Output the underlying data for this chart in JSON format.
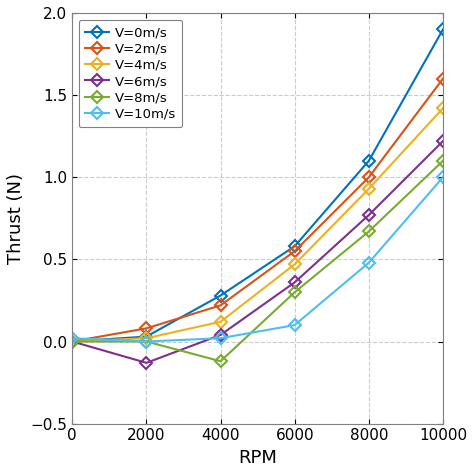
{
  "series": [
    {
      "label": "V=0m/s",
      "color": "#0072BD",
      "rpm": [
        0,
        2000,
        4000,
        6000,
        8000,
        10000
      ],
      "thrust": [
        0.0,
        0.03,
        0.28,
        0.58,
        1.1,
        1.9
      ]
    },
    {
      "label": "V=2m/s",
      "color": "#D95319",
      "rpm": [
        0,
        2000,
        4000,
        6000,
        8000,
        10000
      ],
      "thrust": [
        0.0,
        0.08,
        0.22,
        0.55,
        1.0,
        1.6
      ]
    },
    {
      "label": "V=4m/s",
      "color": "#EDB120",
      "rpm": [
        0,
        2000,
        4000,
        6000,
        8000,
        10000
      ],
      "thrust": [
        0.0,
        0.02,
        0.12,
        0.47,
        0.93,
        1.42
      ]
    },
    {
      "label": "V=6m/s",
      "color": "#7E2F8E",
      "rpm": [
        0,
        2000,
        4000,
        6000,
        8000,
        10000
      ],
      "thrust": [
        0.0,
        -0.13,
        0.04,
        0.36,
        0.77,
        1.22
      ]
    },
    {
      "label": "V=8m/s",
      "color": "#77AC30",
      "rpm": [
        0,
        2000,
        4000,
        6000,
        8000,
        10000
      ],
      "thrust": [
        0.0,
        0.0,
        -0.12,
        0.3,
        0.67,
        1.1
      ]
    },
    {
      "label": "V=10m/s",
      "color": "#4DBEEE",
      "rpm": [
        0,
        2000,
        4000,
        6000,
        8000,
        10000
      ],
      "thrust": [
        0.02,
        0.0,
        0.02,
        0.1,
        0.48,
        1.0
      ]
    }
  ],
  "xlabel": "RPM",
  "ylabel": "Thrust (N)",
  "xlim": [
    0,
    10000
  ],
  "ylim": [
    -0.5,
    2.0
  ],
  "xticks": [
    0,
    2000,
    4000,
    6000,
    8000,
    10000
  ],
  "yticks": [
    -0.5,
    0,
    0.5,
    1.0,
    1.5,
    2.0
  ],
  "grid_color": "#CCCCCC",
  "marker": "D",
  "markersize": 6,
  "linewidth": 1.5,
  "legend_loc": "upper left",
  "bg_color": "#FFFFFF",
  "spine_color": "#808080",
  "tick_fontsize": 11,
  "label_fontsize": 13
}
